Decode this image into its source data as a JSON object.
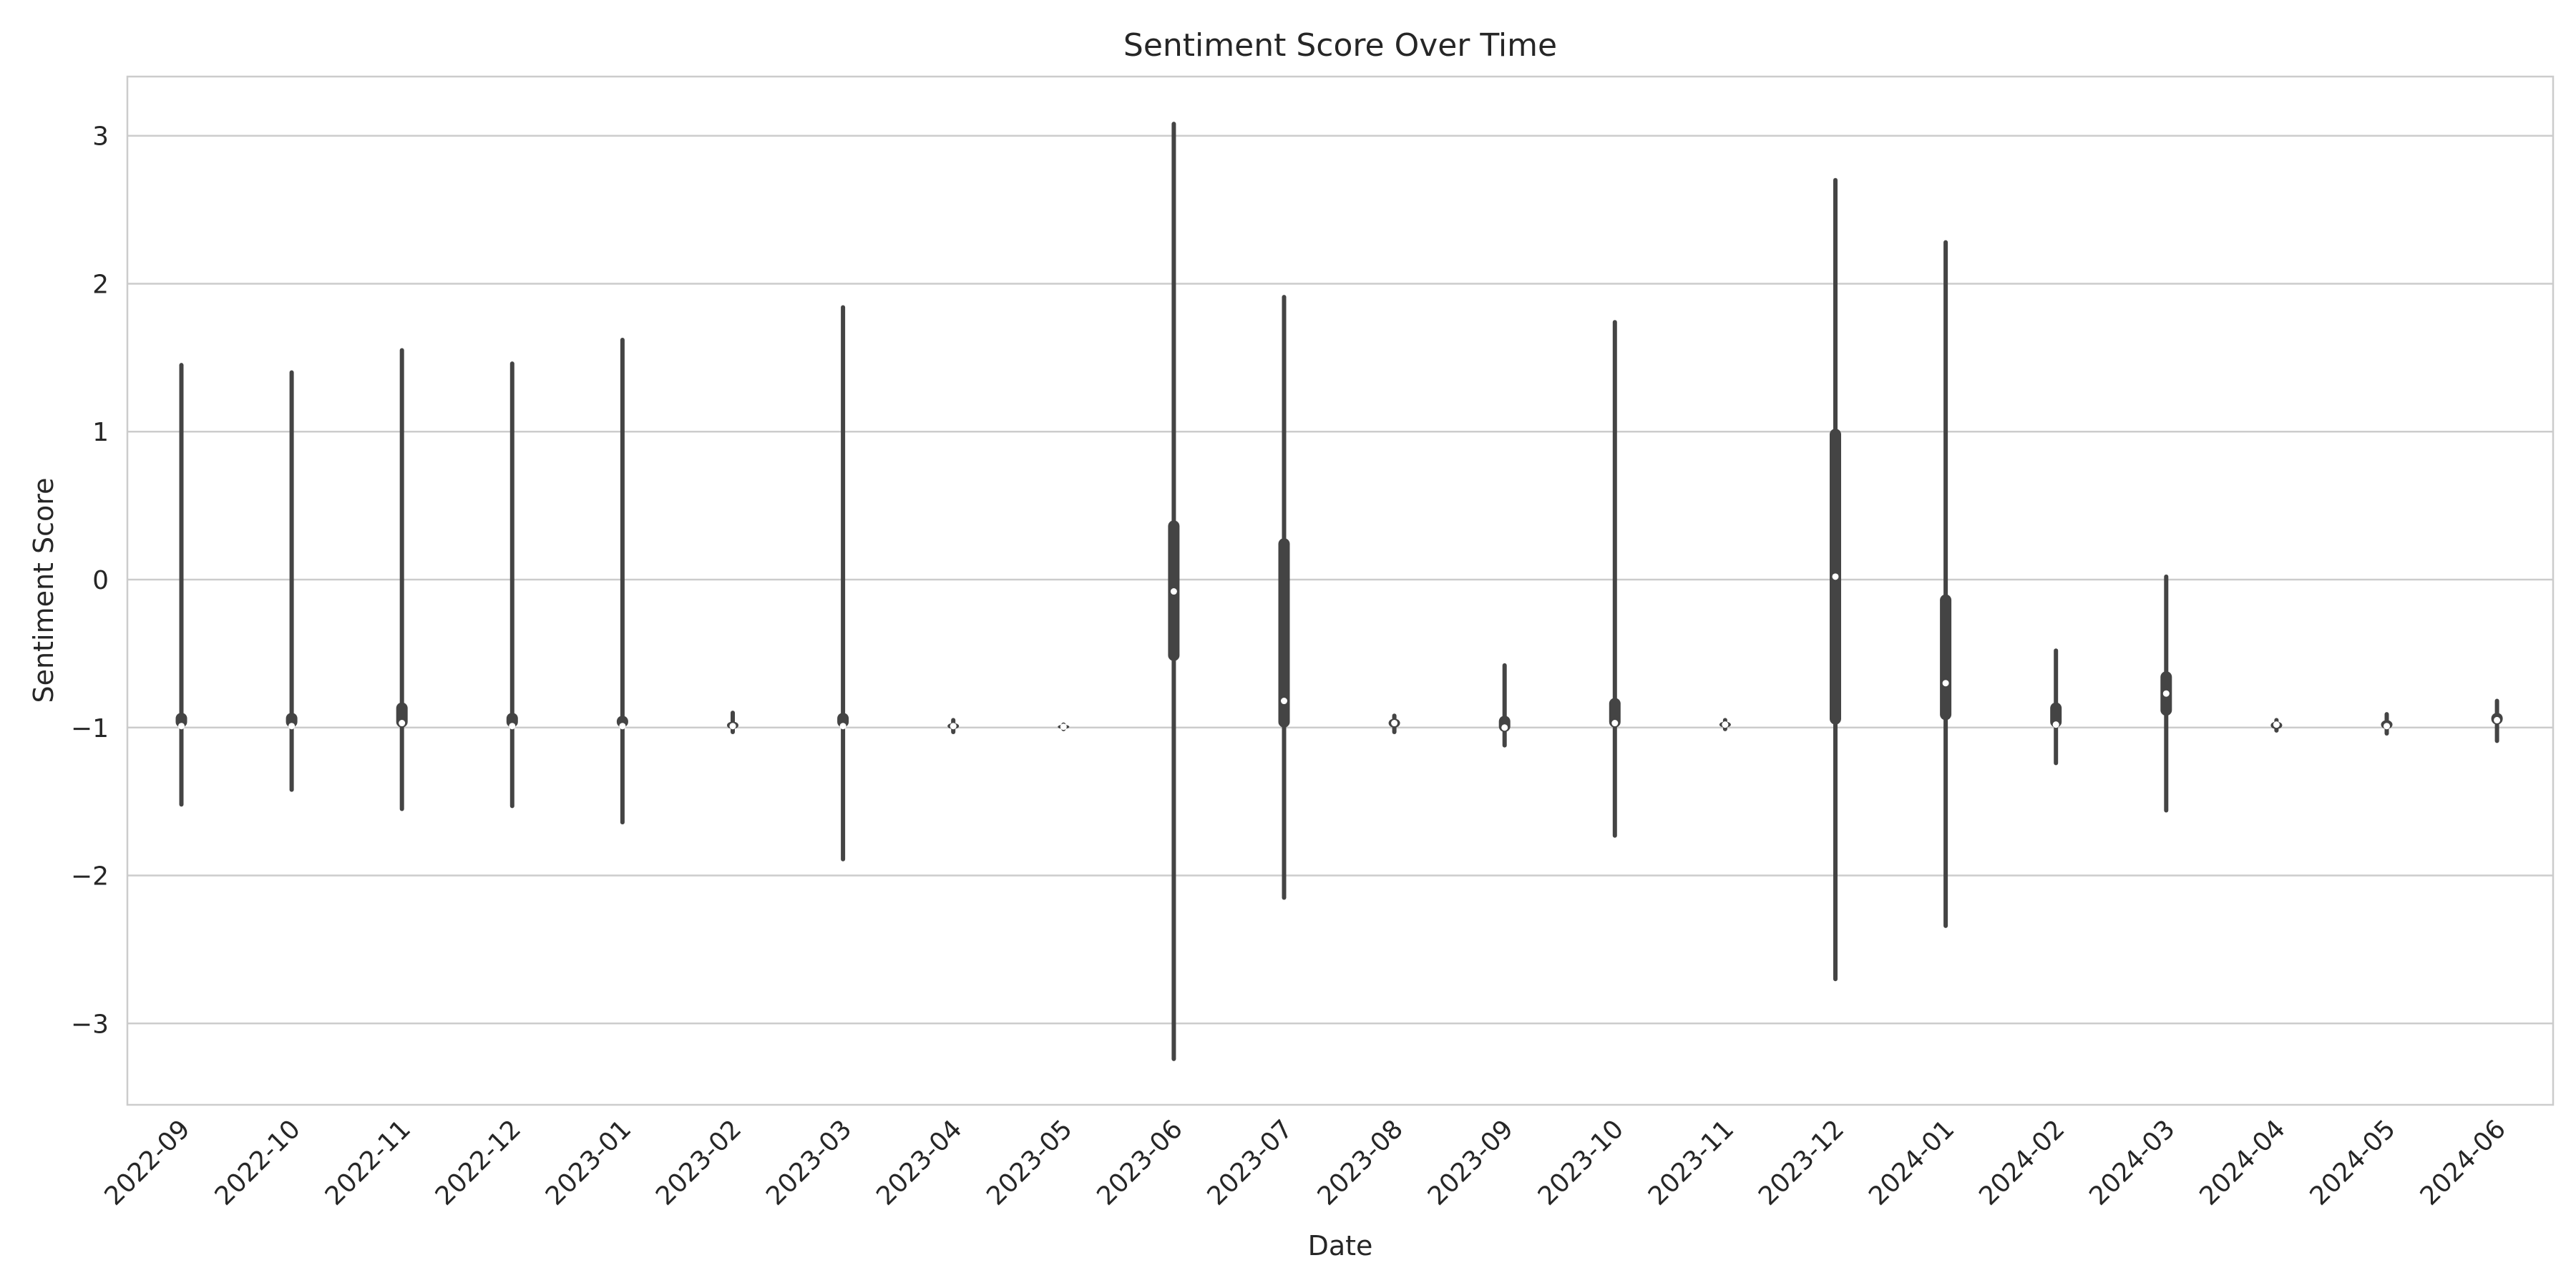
{
  "chart_data": {
    "type": "violin",
    "title": "Sentiment Score Over Time",
    "xlabel": "Date",
    "ylabel": "Sentiment Score",
    "ylim": [
      -3.55,
      3.4
    ],
    "yticks": [
      3,
      2,
      1,
      0,
      -1,
      -2,
      -3
    ],
    "ytick_labels": [
      "3",
      "2",
      "1",
      "0",
      "−1",
      "−2",
      "−3"
    ],
    "grid": true,
    "colors": {
      "violin": "#444444",
      "median": "#ffffff",
      "grid": "#cccccc",
      "frame": "#cccccc",
      "text": "#262626"
    },
    "categories": [
      {
        "label": "2022-09",
        "min": -1.52,
        "max": 1.45,
        "q1": -1.0,
        "q3": -0.9,
        "median": -0.99
      },
      {
        "label": "2022-10",
        "min": -1.42,
        "max": 1.4,
        "q1": -1.0,
        "q3": -0.9,
        "median": -0.99
      },
      {
        "label": "2022-11",
        "min": -1.55,
        "max": 1.55,
        "q1": -1.0,
        "q3": -0.83,
        "median": -0.97
      },
      {
        "label": "2022-12",
        "min": -1.53,
        "max": 1.46,
        "q1": -1.0,
        "q3": -0.9,
        "median": -0.99
      },
      {
        "label": "2023-01",
        "min": -1.64,
        "max": 1.62,
        "q1": -1.0,
        "q3": -0.92,
        "median": -0.99
      },
      {
        "label": "2023-02",
        "min": -1.03,
        "max": -0.9,
        "q1": -1.01,
        "q3": -0.96,
        "median": -0.99
      },
      {
        "label": "2023-03",
        "min": -1.89,
        "max": 1.84,
        "q1": -1.0,
        "q3": -0.9,
        "median": -0.99
      },
      {
        "label": "2023-04",
        "min": -1.03,
        "max": -0.95,
        "q1": -1.01,
        "q3": -0.97,
        "median": -0.99
      },
      {
        "label": "2023-05",
        "min": -1.01,
        "max": -0.98,
        "q1": -1.0,
        "q3": -0.99,
        "median": -0.995
      },
      {
        "label": "2023-06",
        "min": -3.24,
        "max": 3.08,
        "q1": -0.55,
        "q3": 0.4,
        "median": -0.08
      },
      {
        "label": "2023-07",
        "min": -2.15,
        "max": 1.91,
        "q1": -1.0,
        "q3": 0.28,
        "median": -0.82
      },
      {
        "label": "2023-08",
        "min": -1.03,
        "max": -0.92,
        "q1": -1.0,
        "q3": -0.94,
        "median": -0.97
      },
      {
        "label": "2023-09",
        "min": -1.12,
        "max": -0.58,
        "q1": -1.03,
        "q3": -0.92,
        "median": -1.0
      },
      {
        "label": "2023-10",
        "min": -1.73,
        "max": 1.74,
        "q1": -1.0,
        "q3": -0.8,
        "median": -0.97
      },
      {
        "label": "2023-11",
        "min": -1.01,
        "max": -0.95,
        "q1": -1.0,
        "q3": -0.96,
        "median": -0.98
      },
      {
        "label": "2023-12",
        "min": -2.7,
        "max": 2.7,
        "q1": -0.98,
        "q3": 1.02,
        "median": 0.02
      },
      {
        "label": "2024-01",
        "min": -2.34,
        "max": 2.28,
        "q1": -0.95,
        "q3": -0.1,
        "median": -0.7
      },
      {
        "label": "2024-02",
        "min": -1.24,
        "max": -0.48,
        "q1": -1.0,
        "q3": -0.83,
        "median": -0.98
      },
      {
        "label": "2024-03",
        "min": -1.56,
        "max": 0.02,
        "q1": -0.92,
        "q3": -0.62,
        "median": -0.77
      },
      {
        "label": "2024-04",
        "min": -1.02,
        "max": -0.95,
        "q1": -1.01,
        "q3": -0.96,
        "median": -0.98
      },
      {
        "label": "2024-05",
        "min": -1.04,
        "max": -0.91,
        "q1": -1.01,
        "q3": -0.95,
        "median": -0.99
      },
      {
        "label": "2024-06",
        "min": -1.09,
        "max": -0.82,
        "q1": -0.98,
        "q3": -0.9,
        "median": -0.95
      }
    ]
  }
}
